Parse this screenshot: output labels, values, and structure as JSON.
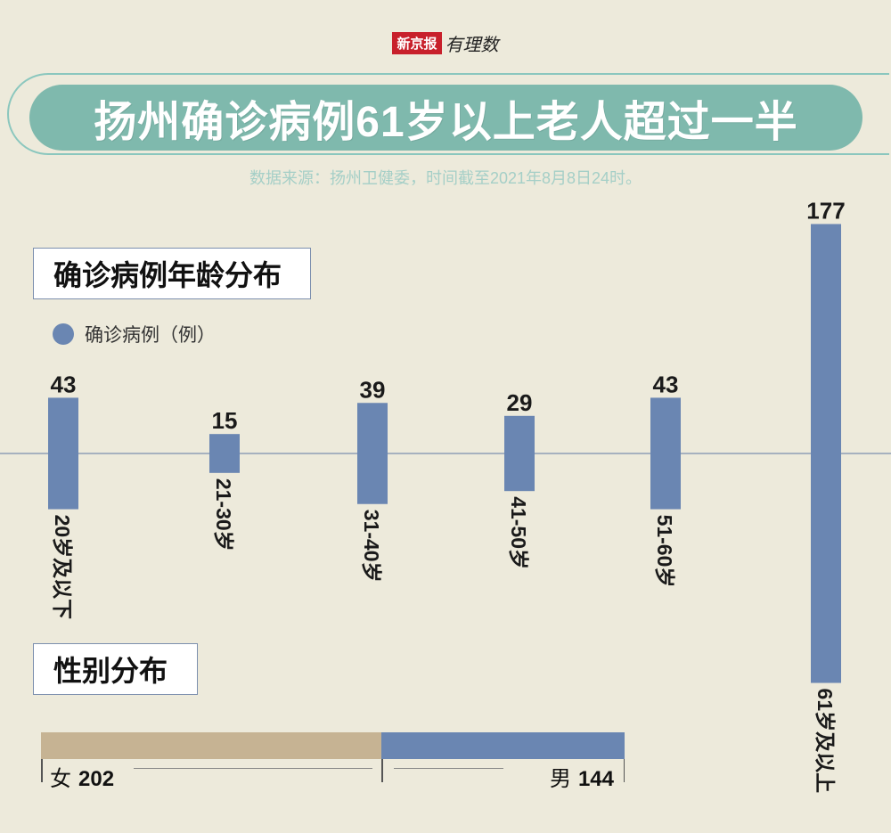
{
  "brand": {
    "name": "新京报",
    "column": "有理数"
  },
  "title": "扬州确诊病例61岁以上老人超过一半",
  "source": "数据来源：扬州卫健委，时间截至2021年8月8日24时。",
  "section_age": "确诊病例年龄分布",
  "section_gender": "性别分布",
  "legend": {
    "label": "确诊病例（例）",
    "color": "#6a86b2"
  },
  "chart_data": [
    {
      "type": "bar",
      "title": "确诊病例年龄分布",
      "categories": [
        "20岁及以下",
        "21-30岁",
        "31-40岁",
        "41-50岁",
        "51-60岁",
        "61岁及以上"
      ],
      "series": [
        {
          "name": "确诊病例（例）",
          "values": [
            43,
            15,
            39,
            29,
            43,
            177
          ],
          "color": "#6a86b2"
        }
      ]
    },
    {
      "type": "bar",
      "title": "性别分布",
      "categories": [
        "女",
        "男"
      ],
      "values": [
        202,
        144
      ],
      "colors": [
        "#c6b393",
        "#6a86b2"
      ]
    }
  ]
}
